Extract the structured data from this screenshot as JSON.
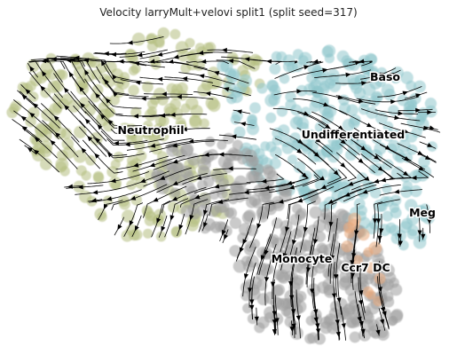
{
  "chart_data": {
    "type": "scatter",
    "title": "Velocity larryMult+velovi split1 (split seed=317)",
    "xlabel": "",
    "ylabel": "",
    "grid": false,
    "axes_visible": false,
    "overlay": "velocity streamlines",
    "stream_color": "#000000",
    "point_opacity": 0.55,
    "clusters": [
      {
        "name": "Neutrophil",
        "color": "#b5bd80"
      },
      {
        "name": "Undifferentiated",
        "color": "#8fc7cc"
      },
      {
        "name": "Baso",
        "color": "#8fc7cc"
      },
      {
        "name": "Meg",
        "color": "#8fc7cc"
      },
      {
        "name": "Monocyte",
        "color": "#9e9e9e"
      },
      {
        "name": "Ccr7 DC",
        "color": "#e8a77a"
      }
    ]
  }
}
